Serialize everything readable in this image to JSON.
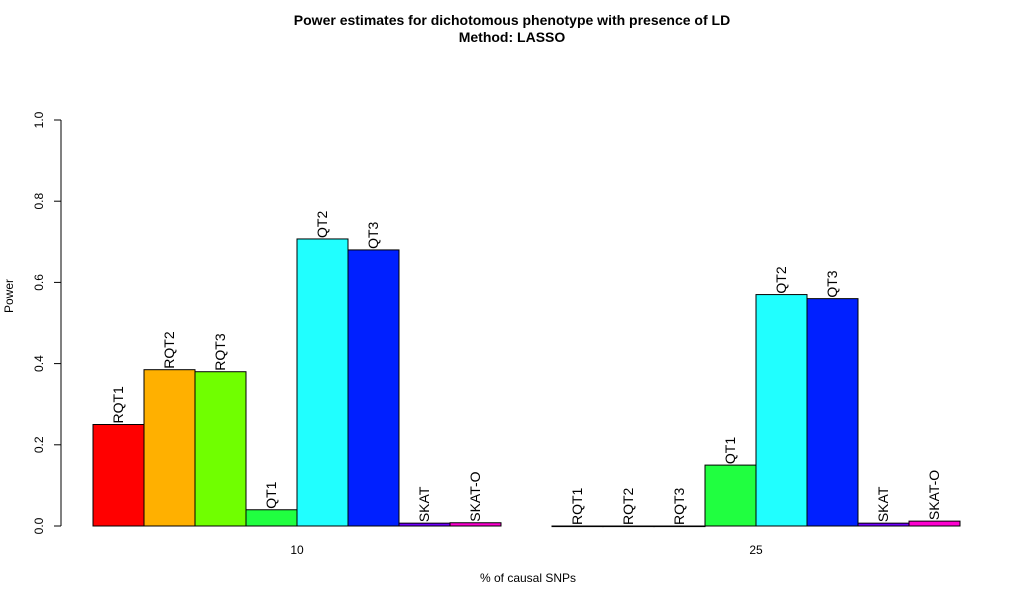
{
  "chart_data": {
    "type": "bar",
    "title": "Power estimates for dichotomous phenotype with presence of LD",
    "subtitle": "Method: LASSO",
    "xlabel": "% of causal SNPs",
    "ylabel": "Power",
    "ylim": [
      0,
      1
    ],
    "yticks": [
      "0.0",
      "0.2",
      "0.4",
      "0.6",
      "0.8",
      "1.0"
    ],
    "categories": [
      "10",
      "25"
    ],
    "series": [
      {
        "name": "RQT1",
        "color": "#ff0000",
        "values": [
          0.25,
          0.0
        ]
      },
      {
        "name": "RQT2",
        "color": "#ffb000",
        "values": [
          0.385,
          0.0
        ]
      },
      {
        "name": "RQT3",
        "color": "#70ff00",
        "values": [
          0.38,
          0.0
        ]
      },
      {
        "name": "QT1",
        "color": "#20ff40",
        "values": [
          0.04,
          0.15
        ]
      },
      {
        "name": "QT2",
        "color": "#20ffff",
        "values": [
          0.707,
          0.57
        ]
      },
      {
        "name": "QT3",
        "color": "#0020ff",
        "values": [
          0.68,
          0.56
        ]
      },
      {
        "name": "SKAT",
        "color": "#7000ff",
        "values": [
          0.007,
          0.007
        ]
      },
      {
        "name": "SKAT-O",
        "color": "#ff00d0",
        "values": [
          0.008,
          0.012
        ]
      }
    ],
    "grid": false,
    "legend": "none; series names printed vertically above each bar"
  }
}
